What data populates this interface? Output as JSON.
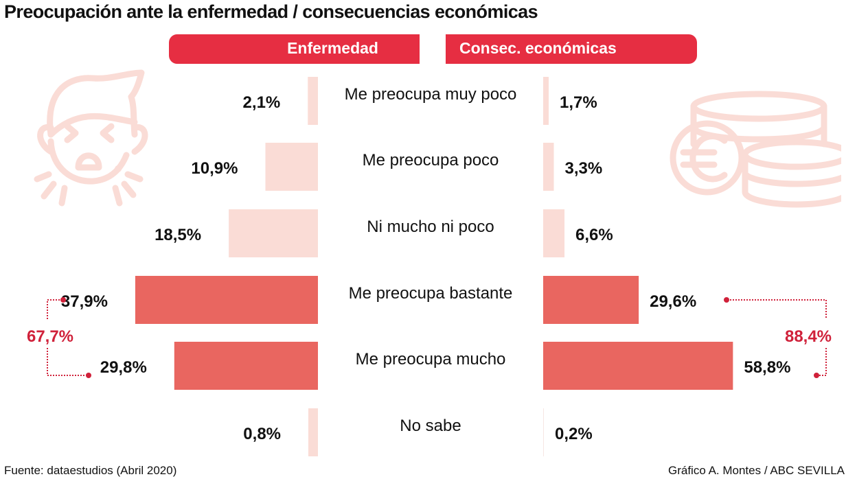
{
  "chart_data": {
    "type": "bar",
    "orientation": "diverging-horizontal",
    "title": "Preocupación ante la enfermedad / consecuencias económicas",
    "categories": [
      "Me preocupa muy poco",
      "Me preocupa poco",
      "Ni mucho ni poco",
      "Me preocupa bastante",
      "Me preocupa mucho",
      "No sabe"
    ],
    "series": [
      {
        "name": "Enfermedad",
        "side": "left",
        "values": [
          2.1,
          10.9,
          18.5,
          37.9,
          29.8,
          0.8
        ],
        "labels": [
          "2,1%",
          "10,9%",
          "18,5%",
          "37,9%",
          "29,8%",
          "0,8%"
        ]
      },
      {
        "name": "Consec. económicas",
        "side": "right",
        "values": [
          1.7,
          3.3,
          6.6,
          29.6,
          58.8,
          0.2
        ],
        "labels": [
          "1,7%",
          "3,3%",
          "6,6%",
          "29,6%",
          "58,8%",
          "0,2%"
        ]
      }
    ],
    "annotations": [
      {
        "series": "Enfermedad",
        "text": "67,7%",
        "value": 67.7,
        "combines": [
          "Me preocupa bastante",
          "Me preocupa mucho"
        ]
      },
      {
        "series": "Consec. económicas",
        "text": "88,4%",
        "value": 88.4,
        "combines": [
          "Me preocupa bastante",
          "Me preocupa mucho"
        ]
      }
    ],
    "xlabel": "",
    "ylabel": "",
    "grid": false,
    "legend": "top-center"
  },
  "colors": {
    "header": "#e62e42",
    "bar_low": "#fadcd6",
    "bar_high": "#e96660",
    "annotation": "#d0213a",
    "icon": "#fadcd6"
  },
  "header": {
    "left_label": "Enfermedad",
    "right_label": "Consec. económicas"
  },
  "icons": {
    "left": "sick-person-icon",
    "right": "euro-coins-icon"
  },
  "footer": {
    "source": "Fuente: dataestudios (Abril 2020)",
    "credit": "Gráfico A. Montes / ABC SEVILLA"
  }
}
